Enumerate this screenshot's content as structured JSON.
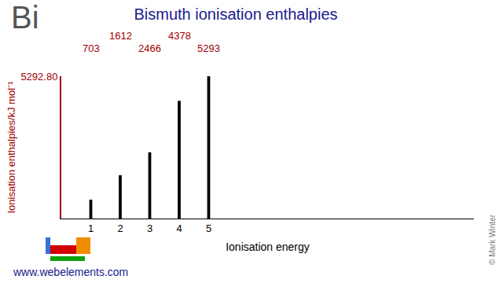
{
  "chart_data": {
    "type": "bar",
    "title": "Bismuth ionisation enthalpies",
    "x_label": "Ionisation energy",
    "y_label": "Ionisation enthalpies/kJ mol⁻¹",
    "x": [
      1,
      2,
      3,
      4,
      5
    ],
    "values": [
      703,
      1612,
      2466,
      4378,
      5292.8
    ],
    "value_labels": [
      "703",
      "1612",
      "2466",
      "4378",
      "5293"
    ],
    "data_labels": true,
    "color": "#000000",
    "xlim": [
      0,
      14
    ],
    "xticks": [
      1,
      2,
      3,
      4,
      5
    ],
    "ylim": [
      0,
      5292.8
    ],
    "yticks": [
      {
        "value": 5292.8,
        "label": "5292.80"
      }
    ],
    "grid": false,
    "annotations": [
      "Bi",
      "www.webelements.com",
      "© Mark Winter"
    ]
  }
}
